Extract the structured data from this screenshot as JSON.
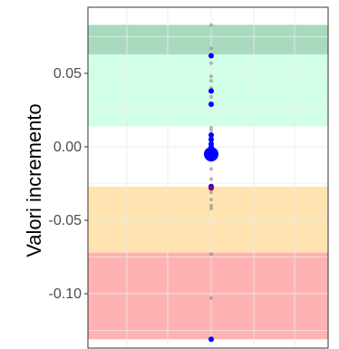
{
  "chart_data": {
    "type": "scatter",
    "title": "",
    "xlabel": "",
    "ylabel": "Valori incremento",
    "ylim": [
      -0.137,
      0.095
    ],
    "yticks": [
      0.05,
      0.0,
      -0.05,
      -0.1
    ],
    "ytick_labels": [
      "0.05",
      "0.00",
      "-0.05",
      "-0.10"
    ],
    "grid": true,
    "bands": [
      {
        "name": "green",
        "from": 0.014,
        "to": 0.083,
        "color": "#00ff7f",
        "opacity": 0.18
      },
      {
        "name": "dark-green",
        "from": 0.063,
        "to": 0.083,
        "color": "#2e6b3b",
        "opacity": 0.25
      },
      {
        "name": "orange",
        "from": -0.072,
        "to": -0.027,
        "color": "#ffa500",
        "opacity": 0.3
      },
      {
        "name": "red",
        "from": -0.131,
        "to": -0.072,
        "color": "#ff0000",
        "opacity": 0.3
      }
    ],
    "series": [
      {
        "color": "#808080",
        "opacity": 0.55,
        "points": [
          {
            "y": 0.083
          },
          {
            "y": 0.067
          },
          {
            "y": 0.057
          },
          {
            "y": 0.048
          },
          {
            "y": 0.045
          },
          {
            "y": 0.04
          },
          {
            "y": 0.034
          },
          {
            "y": 0.029
          },
          {
            "y": 0.013
          },
          {
            "y": 0.011
          },
          {
            "y": 0.006
          },
          {
            "y": 0.003
          },
          {
            "y": -0.001
          },
          {
            "y": -0.009
          },
          {
            "y": -0.015
          },
          {
            "y": -0.022
          },
          {
            "y": -0.028
          },
          {
            "y": -0.031
          },
          {
            "y": -0.036
          },
          {
            "y": -0.04
          },
          {
            "y": -0.042
          },
          {
            "y": -0.073
          },
          {
            "y": -0.103
          },
          {
            "y": -0.131
          }
        ]
      },
      {
        "color": "#0000ff",
        "points": [
          {
            "y": 0.062,
            "size": 3
          },
          {
            "y": 0.038,
            "size": 3
          },
          {
            "y": 0.029,
            "size": 3
          },
          {
            "y": 0.008,
            "size": 3
          },
          {
            "y": 0.005,
            "size": 3
          },
          {
            "y": 0.002,
            "size": 3
          },
          {
            "y": 0.0,
            "size": 3
          },
          {
            "y": -0.005,
            "size": 8
          },
          {
            "y": -0.027,
            "size": 3
          },
          {
            "y": -0.131,
            "size": 3
          }
        ]
      },
      {
        "color": "#800080",
        "points": [
          {
            "y": -0.028,
            "size": 3
          }
        ]
      }
    ]
  }
}
